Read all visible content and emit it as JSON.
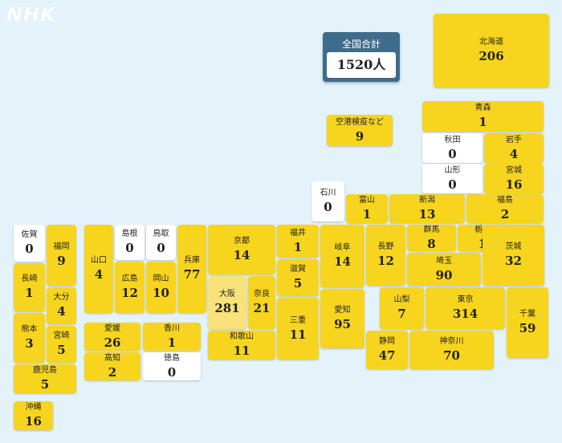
{
  "logo": "NHK",
  "total": {
    "label": "全国合計",
    "value": "1520人"
  },
  "colors": {
    "background": "#e4f3fa",
    "positive": "#f7d51e",
    "zero": "#ffffff",
    "highlight": "#f9e27a",
    "total_box": "#3f6c8a"
  },
  "prefectures": [
    {
      "name": "北海道",
      "value": "206"
    },
    {
      "name": "空港検疫など",
      "value": "9"
    },
    {
      "name": "青森",
      "value": "1"
    },
    {
      "name": "秋田",
      "value": "0"
    },
    {
      "name": "岩手",
      "value": "4"
    },
    {
      "name": "山形",
      "value": "0"
    },
    {
      "name": "宮城",
      "value": "16"
    },
    {
      "name": "石川",
      "value": "0"
    },
    {
      "name": "富山",
      "value": "1"
    },
    {
      "name": "新潟",
      "value": "13"
    },
    {
      "name": "福島",
      "value": "2"
    },
    {
      "name": "佐賀",
      "value": "0"
    },
    {
      "name": "福岡",
      "value": "9"
    },
    {
      "name": "山口",
      "value": "4"
    },
    {
      "name": "島根",
      "value": "0"
    },
    {
      "name": "鳥取",
      "value": "0"
    },
    {
      "name": "兵庫",
      "value": "77"
    },
    {
      "name": "京都",
      "value": "14"
    },
    {
      "name": "福井",
      "value": "1"
    },
    {
      "name": "岐阜",
      "value": "14"
    },
    {
      "name": "長野",
      "value": "12"
    },
    {
      "name": "群馬",
      "value": "8"
    },
    {
      "name": "栃木",
      "value": "1"
    },
    {
      "name": "茨城",
      "value": "32"
    },
    {
      "name": "長崎",
      "value": "1"
    },
    {
      "name": "広島",
      "value": "12"
    },
    {
      "name": "岡山",
      "value": "10"
    },
    {
      "name": "大阪",
      "value": "281"
    },
    {
      "name": "滋賀",
      "value": "5"
    },
    {
      "name": "埼玉",
      "value": "90"
    },
    {
      "name": "大分",
      "value": "4"
    },
    {
      "name": "奈良",
      "value": "21"
    },
    {
      "name": "熊本",
      "value": "3"
    },
    {
      "name": "宮崎",
      "value": "5"
    },
    {
      "name": "愛媛",
      "value": "26"
    },
    {
      "name": "香川",
      "value": "1"
    },
    {
      "name": "三重",
      "value": "11"
    },
    {
      "name": "愛知",
      "value": "95"
    },
    {
      "name": "山梨",
      "value": "7"
    },
    {
      "name": "東京",
      "value": "314"
    },
    {
      "name": "千葉",
      "value": "59"
    },
    {
      "name": "和歌山",
      "value": "11"
    },
    {
      "name": "高知",
      "value": "2"
    },
    {
      "name": "徳島",
      "value": "0"
    },
    {
      "name": "静岡",
      "value": "47"
    },
    {
      "name": "神奈川",
      "value": "70"
    },
    {
      "name": "鹿児島",
      "value": "5"
    },
    {
      "name": "沖縄",
      "value": "16"
    }
  ]
}
